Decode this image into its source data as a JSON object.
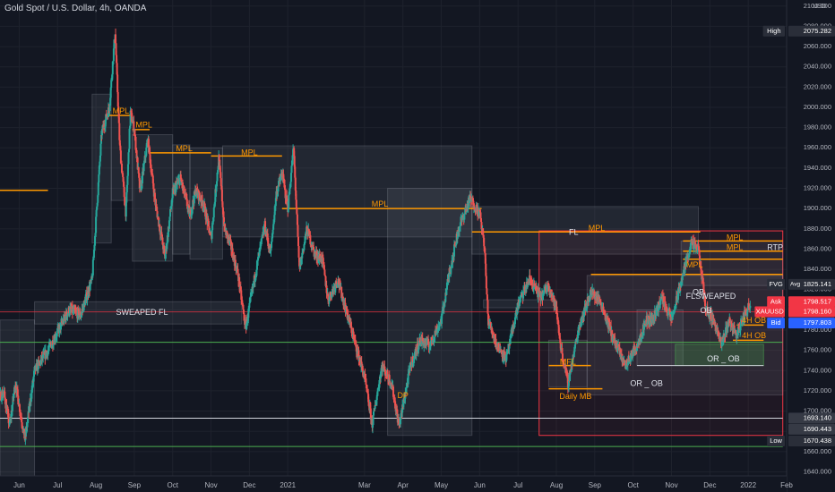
{
  "header": {
    "title": "Gold Spot / U.S. Dollar, 4h, OANDA"
  },
  "colors": {
    "background": "#131722",
    "up": "#26a69a",
    "down": "#ef5350",
    "grid": "#1e222d",
    "text": "#b2b5be",
    "orange": "#ff9800",
    "white_line": "#d1d4dc",
    "green_line": "#4caf50",
    "red_line": "#f23645",
    "zone": "rgba(120,123,134,0.16)",
    "green_zone": "rgba(76,175,80,0.25)"
  },
  "chart_data": {
    "type": "candlestick",
    "symbol": "XAUUSD",
    "price_axis": {
      "ylim": [
        1636,
        2106
      ],
      "ticks": [
        1640,
        1660,
        1680,
        1700,
        1720,
        1740,
        1760,
        1780,
        1800,
        1820,
        1840,
        1860,
        1880,
        1900,
        1920,
        1940,
        1960,
        1980,
        2000,
        2020,
        2040,
        2060,
        2080,
        2100
      ],
      "tick_labels": [
        "1640.000",
        "1660.000",
        "1680.000",
        "1700.000",
        "1720.000",
        "1740.000",
        "1760.000",
        "1780.000",
        "1800.000",
        "1820.000",
        "1840.000",
        "1860.000",
        "1880.000",
        "1900.000",
        "1920.000",
        "1940.000",
        "1960.000",
        "1980.000",
        "2000.000",
        "2020.000",
        "2040.000",
        "2060.000",
        "2080.000",
        "2100.000"
      ],
      "currency": "USD"
    },
    "time_axis": {
      "labels": [
        "Jun",
        "Jul",
        "Aug",
        "Sep",
        "Oct",
        "Nov",
        "Dec",
        "2021",
        "Mar",
        "Apr",
        "May",
        "Jun",
        "Jul",
        "Aug",
        "Sep",
        "Oct",
        "Nov",
        "Dec",
        "2022",
        "Feb"
      ],
      "positions": [
        0,
        1,
        2,
        3,
        4,
        5,
        6,
        7,
        9,
        10,
        11,
        12,
        13,
        14,
        15,
        16,
        17,
        18,
        19,
        20
      ],
      "range": [
        -0.5,
        20
      ]
    },
    "path_anchors": [
      [
        -0.9,
        1700
      ],
      [
        -0.4,
        1718
      ],
      [
        -0.25,
        1685
      ],
      [
        -0.1,
        1728
      ],
      [
        0.15,
        1672
      ],
      [
        0.4,
        1740
      ],
      [
        0.75,
        1760
      ],
      [
        1.0,
        1778
      ],
      [
        1.3,
        1800
      ],
      [
        1.6,
        1795
      ],
      [
        1.9,
        1830
      ],
      [
        2.15,
        1975
      ],
      [
        2.35,
        2000
      ],
      [
        2.5,
        2075
      ],
      [
        2.62,
        1962
      ],
      [
        2.78,
        1895
      ],
      [
        2.9,
        1995
      ],
      [
        3.0,
        1978
      ],
      [
        3.15,
        1916
      ],
      [
        3.35,
        1968
      ],
      [
        3.55,
        1905
      ],
      [
        3.8,
        1852
      ],
      [
        4.0,
        1915
      ],
      [
        4.2,
        1930
      ],
      [
        4.45,
        1893
      ],
      [
        4.6,
        1918
      ],
      [
        4.8,
        1905
      ],
      [
        5.0,
        1870
      ],
      [
        5.2,
        1950
      ],
      [
        5.35,
        1880
      ],
      [
        5.5,
        1865
      ],
      [
        5.7,
        1835
      ],
      [
        5.9,
        1782
      ],
      [
        6.2,
        1845
      ],
      [
        6.4,
        1883
      ],
      [
        6.55,
        1855
      ],
      [
        6.7,
        1915
      ],
      [
        6.85,
        1935
      ],
      [
        7.0,
        1900
      ],
      [
        7.15,
        1960
      ],
      [
        7.3,
        1840
      ],
      [
        7.5,
        1880
      ],
      [
        7.7,
        1855
      ],
      [
        7.9,
        1850
      ],
      [
        8.05,
        1810
      ],
      [
        8.3,
        1830
      ],
      [
        8.5,
        1802
      ],
      [
        8.7,
        1775
      ],
      [
        9.0,
        1733
      ],
      [
        9.2,
        1687
      ],
      [
        9.45,
        1745
      ],
      [
        9.7,
        1728
      ],
      [
        9.9,
        1685
      ],
      [
        10.2,
        1745
      ],
      [
        10.45,
        1770
      ],
      [
        10.7,
        1765
      ],
      [
        11.0,
        1790
      ],
      [
        11.2,
        1835
      ],
      [
        11.45,
        1880
      ],
      [
        11.75,
        1910
      ],
      [
        12.0,
        1895
      ],
      [
        12.12,
        1865
      ],
      [
        12.22,
        1790
      ],
      [
        12.45,
        1765
      ],
      [
        12.7,
        1752
      ],
      [
        13.0,
        1805
      ],
      [
        13.3,
        1830
      ],
      [
        13.6,
        1812
      ],
      [
        13.8,
        1825
      ],
      [
        14.0,
        1800
      ],
      [
        14.12,
        1762
      ],
      [
        14.3,
        1727
      ],
      [
        14.6,
        1785
      ],
      [
        14.9,
        1818
      ],
      [
        15.15,
        1808
      ],
      [
        15.5,
        1770
      ],
      [
        15.8,
        1745
      ],
      [
        16.1,
        1765
      ],
      [
        16.35,
        1790
      ],
      [
        16.5,
        1790
      ],
      [
        16.75,
        1812
      ],
      [
        17.0,
        1790
      ],
      [
        17.2,
        1820
      ],
      [
        17.5,
        1865
      ],
      [
        17.7,
        1860
      ],
      [
        17.9,
        1800
      ],
      [
        18.1,
        1790
      ],
      [
        18.3,
        1765
      ],
      [
        18.5,
        1790
      ],
      [
        18.7,
        1775
      ],
      [
        18.9,
        1795
      ],
      [
        19.05,
        1806
      ]
    ],
    "price_labels": [
      {
        "text": "High",
        "value": "2075.282",
        "price": 2075.282,
        "color": "#2a2e39"
      },
      {
        "text": "FVG",
        "suffix": "Avg",
        "value": "1825.141",
        "price": 1825.141,
        "color": "#2a2e39"
      },
      {
        "text": "Ask",
        "value": "1798.517",
        "price": 1808,
        "color": "#f23645"
      },
      {
        "text": "XAUUSD",
        "value": "1798.160",
        "price": 1798.16,
        "color": "#f23645"
      },
      {
        "text": "Bid",
        "value": "1797.803",
        "price": 1787,
        "color": "#2962ff"
      },
      {
        "text": "",
        "value": "1693.140",
        "price": 1693.14,
        "color": "#363a45"
      },
      {
        "text": "",
        "value": "1690.443",
        "price": 1682,
        "color": "#363a45"
      },
      {
        "text": "Low",
        "value": "1670.438",
        "price": 1670.438,
        "color": "#2a2e39"
      }
    ],
    "zones": [
      {
        "t1": -0.5,
        "t2": 0.4,
        "p1": 1636,
        "p2": 1790,
        "kind": "zone"
      },
      {
        "t1": 0.4,
        "t2": 5.8,
        "p1": 1786,
        "p2": 1808,
        "kind": "zone"
      },
      {
        "t1": 1.9,
        "t2": 2.4,
        "p1": 1866,
        "p2": 2013,
        "kind": "zone"
      },
      {
        "t1": 2.4,
        "t2": 2.95,
        "p1": 1908,
        "p2": 1992,
        "kind": "zone"
      },
      {
        "t1": 2.95,
        "t2": 4.0,
        "p1": 1848,
        "p2": 1973,
        "kind": "zone"
      },
      {
        "t1": 4.0,
        "t2": 4.45,
        "p1": 1855,
        "p2": 1963,
        "kind": "zone"
      },
      {
        "t1": 4.45,
        "t2": 5.3,
        "p1": 1850,
        "p2": 1960,
        "kind": "zone"
      },
      {
        "t1": 5.3,
        "t2": 11.8,
        "p1": 1872,
        "p2": 1962,
        "kind": "zone"
      },
      {
        "t1": 9.6,
        "t2": 11.8,
        "p1": 1676,
        "p2": 1920,
        "kind": "zone"
      },
      {
        "t1": 11.8,
        "t2": 17.7,
        "p1": 1855,
        "p2": 1902,
        "kind": "zone"
      },
      {
        "t1": 12.1,
        "t2": 14.0,
        "p1": 1802,
        "p2": 1810,
        "kind": "zone"
      },
      {
        "t1": 13.55,
        "t2": 19.9,
        "p1": 1676,
        "p2": 1878,
        "kind": "red_box"
      },
      {
        "t1": 13.8,
        "t2": 14.8,
        "p1": 1724,
        "p2": 1770,
        "kind": "zone"
      },
      {
        "t1": 14.8,
        "t2": 19.9,
        "p1": 1716,
        "p2": 1834,
        "kind": "zone"
      },
      {
        "t1": 16.1,
        "t2": 17.3,
        "p1": 1745,
        "p2": 1800,
        "kind": "zone"
      },
      {
        "t1": 17.1,
        "t2": 19.4,
        "p1": 1745,
        "p2": 1766,
        "kind": "green_zone"
      },
      {
        "t1": 17.25,
        "t2": 19.9,
        "p1": 1824,
        "p2": 1868,
        "kind": "zone"
      }
    ],
    "lines": [
      {
        "t1": -0.5,
        "t2": 0.75,
        "price": 1918,
        "kind": "orange"
      },
      {
        "t1": 2.3,
        "t2": 2.95,
        "price": 1992,
        "kind": "orange"
      },
      {
        "t1": 2.95,
        "t2": 3.4,
        "price": 1978,
        "kind": "orange"
      },
      {
        "t1": 3.4,
        "t2": 5.0,
        "price": 1955,
        "kind": "orange"
      },
      {
        "t1": 5.0,
        "t2": 6.85,
        "price": 1952,
        "kind": "orange"
      },
      {
        "t1": 6.85,
        "t2": 12.05,
        "price": 1900,
        "kind": "orange"
      },
      {
        "t1": 11.8,
        "t2": 17.75,
        "price": 1877,
        "kind": "orange"
      },
      {
        "t1": 17.3,
        "t2": 19.9,
        "price": 1868,
        "kind": "orange"
      },
      {
        "t1": 17.3,
        "t2": 19.9,
        "price": 1858,
        "kind": "orange"
      },
      {
        "t1": 17.3,
        "t2": 19.9,
        "price": 1850,
        "kind": "orange"
      },
      {
        "t1": 14.9,
        "t2": 19.9,
        "price": 1835,
        "kind": "orange"
      },
      {
        "t1": 18.7,
        "t2": 19.4,
        "price": 1785,
        "kind": "orange"
      },
      {
        "t1": 18.6,
        "t2": 19.4,
        "price": 1770,
        "kind": "orange"
      },
      {
        "t1": 13.8,
        "t2": 15.2,
        "price": 1722,
        "kind": "orange"
      },
      {
        "t1": 13.8,
        "t2": 14.9,
        "price": 1745,
        "kind": "orange"
      },
      {
        "t1": 16.1,
        "t2": 19.4,
        "price": 1745,
        "kind": "white"
      },
      {
        "t1": -0.5,
        "t2": 19.9,
        "price": 1693,
        "kind": "white"
      },
      {
        "t1": -0.5,
        "t2": 19.9,
        "price": 1768,
        "kind": "green"
      },
      {
        "t1": -0.5,
        "t2": 19.9,
        "price": 1665,
        "kind": "green"
      },
      {
        "t1": -0.5,
        "t2": 19.9,
        "price": 1798,
        "kind": "red"
      }
    ],
    "annotations": [
      {
        "text": "MPL",
        "t": 2.65,
        "price": 1996,
        "kind": "orange"
      },
      {
        "text": "MPL",
        "t": 3.25,
        "price": 1982,
        "kind": "orange"
      },
      {
        "text": "MPL",
        "t": 4.3,
        "price": 1959,
        "kind": "orange"
      },
      {
        "text": "MPL",
        "t": 6.0,
        "price": 1955,
        "kind": "orange"
      },
      {
        "text": "MPL",
        "t": 9.4,
        "price": 1904,
        "kind": "orange"
      },
      {
        "text": "MPL",
        "t": 15.05,
        "price": 1880,
        "kind": "orange"
      },
      {
        "text": "FL",
        "t": 14.45,
        "price": 1876,
        "kind": "white"
      },
      {
        "text": "SWEAPED FL",
        "t": 3.2,
        "price": 1797,
        "kind": "white"
      },
      {
        "text": "DP",
        "t": 10.0,
        "price": 1715,
        "kind": "orange"
      },
      {
        "text": "MFL",
        "t": 14.3,
        "price": 1748,
        "kind": "orange"
      },
      {
        "text": "Daily MB",
        "t": 14.5,
        "price": 1714,
        "kind": "orange"
      },
      {
        "text": "OR _ OB",
        "t": 16.35,
        "price": 1727,
        "kind": "white"
      },
      {
        "text": "MPL",
        "t": 18.65,
        "price": 1871,
        "kind": "orange"
      },
      {
        "text": "MPL",
        "t": 18.65,
        "price": 1861,
        "kind": "orange"
      },
      {
        "text": "RTP",
        "t": 19.7,
        "price": 1861,
        "kind": "white"
      },
      {
        "text": "MPL",
        "t": 17.6,
        "price": 1844,
        "kind": "orange"
      },
      {
        "text": "FL",
        "t": 17.5,
        "price": 1813,
        "kind": "white"
      },
      {
        "text": "OB",
        "t": 17.7,
        "price": 1817,
        "kind": "white"
      },
      {
        "text": "SWEAPED",
        "t": 18.15,
        "price": 1813,
        "kind": "white"
      },
      {
        "text": "OB",
        "t": 17.9,
        "price": 1799,
        "kind": "white"
      },
      {
        "text": "4H OB",
        "t": 19.15,
        "price": 1789,
        "kind": "orange"
      },
      {
        "text": "4H OB",
        "t": 19.15,
        "price": 1774,
        "kind": "orange"
      },
      {
        "text": "OR _ OB",
        "t": 18.35,
        "price": 1751,
        "kind": "white"
      }
    ]
  }
}
